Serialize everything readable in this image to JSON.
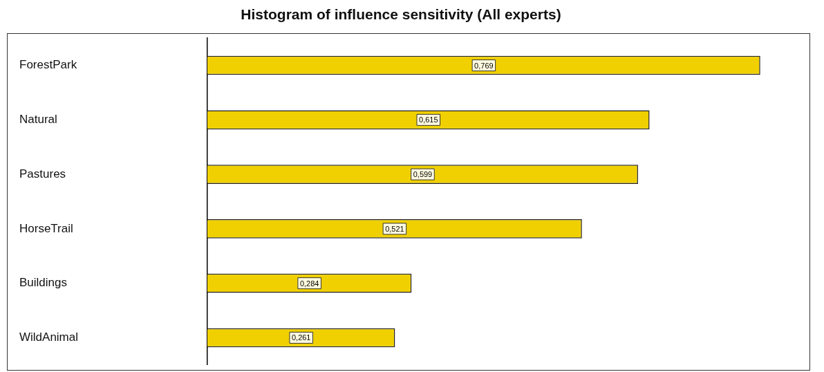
{
  "chart_data": {
    "type": "bar",
    "orientation": "horizontal",
    "title": "Histogram of influence sensitivity (All experts)",
    "categories": [
      "ForestPark",
      "Natural",
      "Pastures",
      "HorseTrail",
      "Buildings",
      "WildAnimal"
    ],
    "values": [
      0.769,
      0.615,
      0.599,
      0.521,
      0.284,
      0.261
    ],
    "value_labels": [
      "0,769",
      "0,615",
      "0,599",
      "0,521",
      "0,284",
      "0,261"
    ],
    "color": "#f0d000",
    "legend": false,
    "tick_labels": "y"
  }
}
